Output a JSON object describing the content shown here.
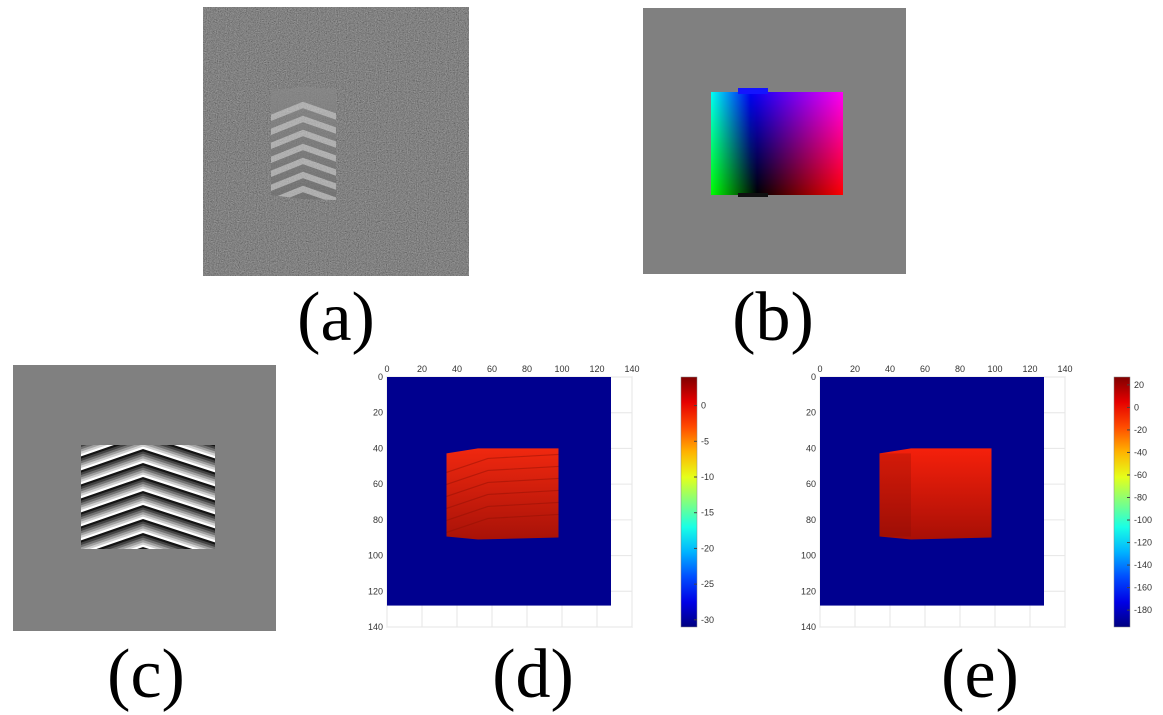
{
  "captions": {
    "a": "(a)",
    "b": "(b)",
    "c": "(c)",
    "d": "(d)",
    "e": "(e)"
  },
  "icons": {
    "a": "noisy-fringe-image",
    "b": "color-phase-map-image",
    "c": "wrapped-phase-image"
  },
  "colors": {
    "background_gray": "#808080",
    "noise_dark": "#1e1e1e",
    "plot_blue": "#00008f",
    "object_red": "#e8200c"
  },
  "chart_data": [
    {
      "type": "heatmap",
      "label": "(d)",
      "x_ticks": [
        "0",
        "20",
        "40",
        "60",
        "80",
        "100",
        "120",
        "140"
      ],
      "y_ticks": [
        "0",
        "20",
        "40",
        "60",
        "80",
        "100",
        "120",
        "140"
      ],
      "xlim": [
        0,
        140
      ],
      "ylim": [
        140,
        0
      ],
      "grid": true,
      "image_extent": [
        0,
        128
      ],
      "object_region": {
        "x": [
          34,
          98
        ],
        "y": [
          40,
          91
        ]
      },
      "colorbar": {
        "colormap": "jet",
        "range": [
          -31,
          4
        ],
        "ticks": [
          "0",
          "-5",
          "-10",
          "-15",
          "-20",
          "-25",
          "-30"
        ],
        "tick_values": [
          0,
          -5,
          -10,
          -15,
          -20,
          -25,
          -30
        ]
      }
    },
    {
      "type": "heatmap",
      "label": "(e)",
      "x_ticks": [
        "0",
        "20",
        "40",
        "60",
        "80",
        "100",
        "120",
        "140"
      ],
      "y_ticks": [
        "0",
        "20",
        "40",
        "60",
        "80",
        "100",
        "120",
        "140"
      ],
      "xlim": [
        0,
        140
      ],
      "ylim": [
        140,
        0
      ],
      "grid": true,
      "image_extent": [
        0,
        128
      ],
      "object_region": {
        "x": [
          34,
          98
        ],
        "y": [
          40,
          91
        ]
      },
      "colorbar": {
        "colormap": "jet",
        "range": [
          -195,
          27
        ],
        "ticks": [
          "20",
          "0",
          "-20",
          "-40",
          "-60",
          "-80",
          "-100",
          "-120",
          "-140",
          "-160",
          "-180"
        ],
        "tick_values": [
          20,
          0,
          -20,
          -40,
          -60,
          -80,
          -100,
          -120,
          -140,
          -160,
          -180
        ]
      }
    }
  ]
}
